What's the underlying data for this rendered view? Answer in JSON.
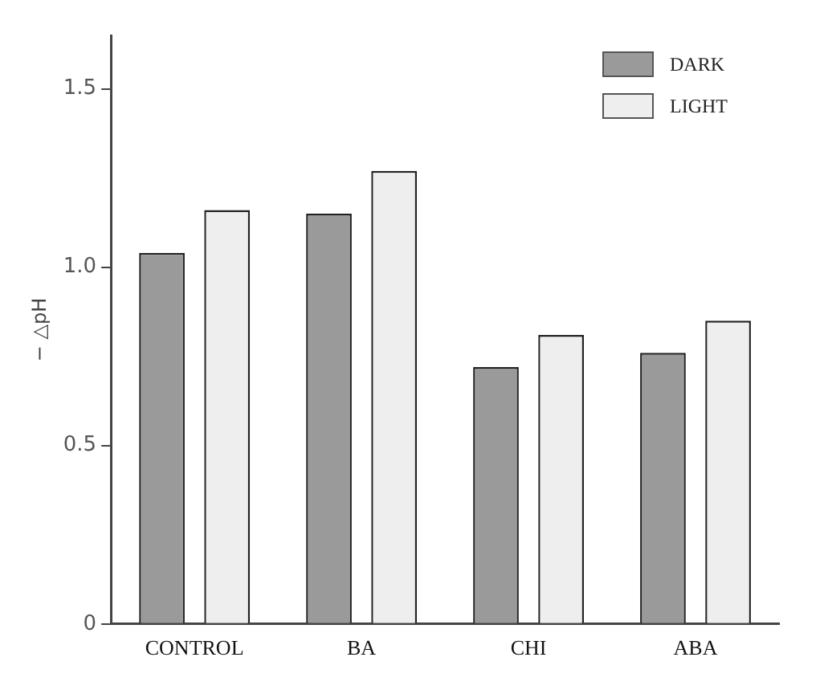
{
  "chart_data": {
    "type": "bar",
    "ylabel": "− △pH",
    "categories": [
      "CONTROL",
      "BA",
      "CHI",
      "ABA"
    ],
    "series": [
      {
        "name": "DARK",
        "color": "#9a9a9a",
        "values": [
          1.04,
          1.15,
          0.72,
          0.76
        ]
      },
      {
        "name": "LIGHT",
        "color": "#eeeeee",
        "values": [
          1.16,
          1.27,
          0.81,
          0.85
        ]
      }
    ],
    "ylim": [
      0,
      1.65
    ],
    "yticks": [
      0,
      0.5,
      {
        "value": 1,
        "label": "1.0"
      },
      1.5
    ],
    "grid": false,
    "legend": "top right"
  }
}
